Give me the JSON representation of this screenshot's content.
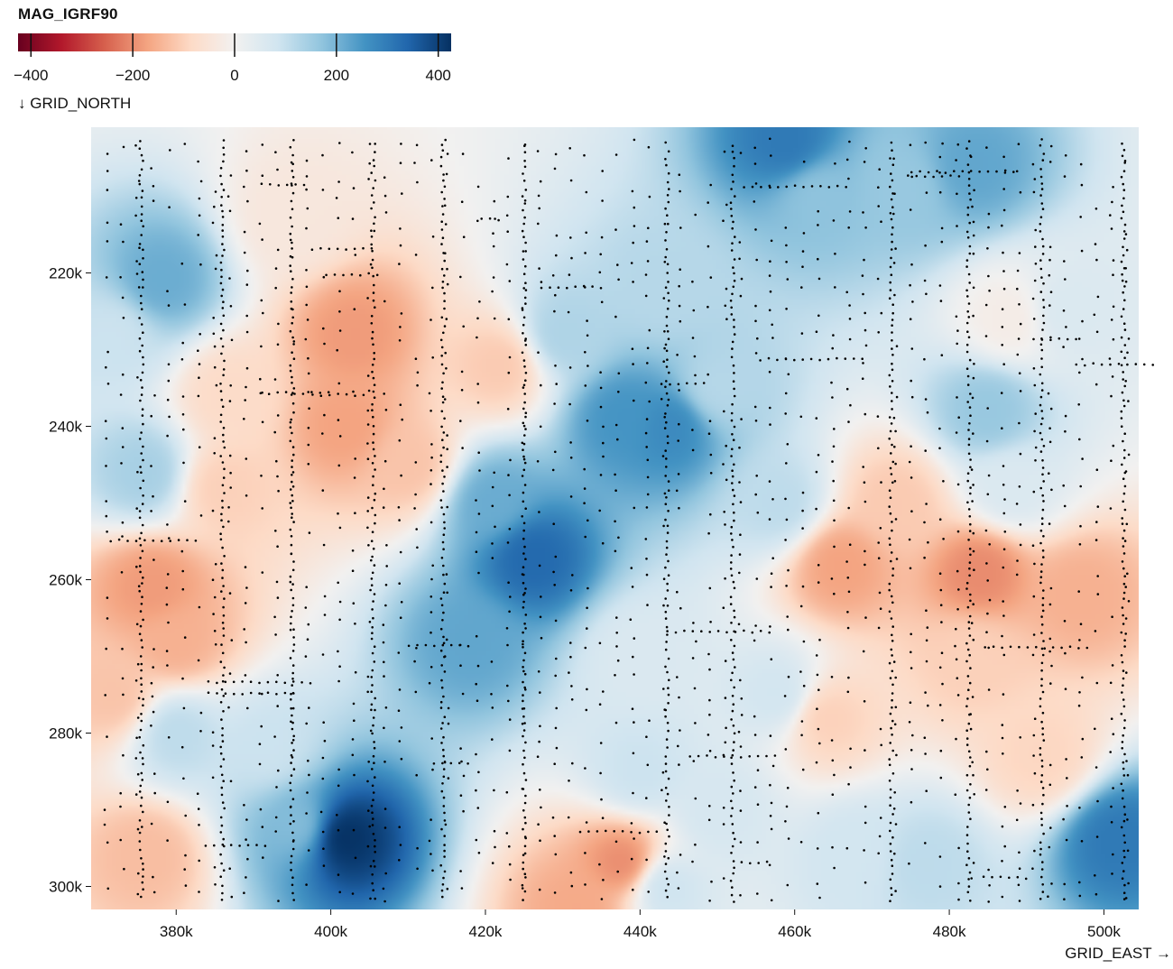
{
  "chart_data": {
    "type": "heatmap",
    "title": "MAG_IGRF90",
    "colorscale": {
      "name": "RdBu",
      "domain": [
        -420,
        420
      ],
      "ticks": [
        -400,
        -200,
        0,
        200,
        400
      ],
      "tick_labels": [
        "−400",
        "−200",
        "0",
        "200",
        "400"
      ]
    },
    "xlabel": "GRID_EAST →",
    "ylabel": "↓ GRID_NORTH",
    "xlim": [
      369000,
      504500
    ],
    "ylim": [
      201000,
      303000
    ],
    "y_reversed": true,
    "x_ticks": [
      380000,
      400000,
      420000,
      440000,
      460000,
      480000,
      500000
    ],
    "x_tick_labels": [
      "380k",
      "400k",
      "420k",
      "440k",
      "460k",
      "480k",
      "500k"
    ],
    "y_ticks": [
      220000,
      240000,
      260000,
      280000,
      300000
    ],
    "y_tick_labels": [
      "220k",
      "240k",
      "260k",
      "280k",
      "300k"
    ],
    "field_anomalies": [
      {
        "x": 401500,
        "y": 293500,
        "v": 420
      },
      {
        "x": 396000,
        "y": 292000,
        "v": 180
      },
      {
        "x": 426000,
        "y": 257000,
        "v": 330
      },
      {
        "x": 418000,
        "y": 268000,
        "v": 220
      },
      {
        "x": 421000,
        "y": 250000,
        "v": 210
      },
      {
        "x": 438000,
        "y": 239000,
        "v": 250
      },
      {
        "x": 444000,
        "y": 240000,
        "v": 270
      },
      {
        "x": 459000,
        "y": 203000,
        "v": 300
      },
      {
        "x": 463000,
        "y": 210000,
        "v": 170
      },
      {
        "x": 483000,
        "y": 206000,
        "v": 220
      },
      {
        "x": 474000,
        "y": 209000,
        "v": 160
      },
      {
        "x": 502000,
        "y": 294000,
        "v": 300
      },
      {
        "x": 378000,
        "y": 221000,
        "v": 210
      },
      {
        "x": 376000,
        "y": 246000,
        "v": 140
      },
      {
        "x": 372000,
        "y": 228000,
        "v": 90
      },
      {
        "x": 380000,
        "y": 280000,
        "v": 110
      },
      {
        "x": 392000,
        "y": 282000,
        "v": 90
      },
      {
        "x": 430000,
        "y": 228000,
        "v": 130
      },
      {
        "x": 443000,
        "y": 222000,
        "v": 120
      },
      {
        "x": 450000,
        "y": 235000,
        "v": 120
      },
      {
        "x": 458000,
        "y": 250000,
        "v": 110
      },
      {
        "x": 458000,
        "y": 275000,
        "v": 80
      },
      {
        "x": 450000,
        "y": 290000,
        "v": 70
      },
      {
        "x": 443000,
        "y": 300000,
        "v": 90
      },
      {
        "x": 477000,
        "y": 297000,
        "v": 110
      },
      {
        "x": 468000,
        "y": 296000,
        "v": 80
      },
      {
        "x": 485000,
        "y": 238000,
        "v": 160
      },
      {
        "x": 488000,
        "y": 248000,
        "v": 60
      },
      {
        "x": 495000,
        "y": 225000,
        "v": 60
      },
      {
        "x": 440000,
        "y": 285000,
        "v": 90
      },
      {
        "x": 440000,
        "y": 270000,
        "v": 60
      },
      {
        "x": 403000,
        "y": 228000,
        "v": -180
      },
      {
        "x": 402000,
        "y": 240000,
        "v": -170
      },
      {
        "x": 410000,
        "y": 245000,
        "v": -120
      },
      {
        "x": 377000,
        "y": 261000,
        "v": -180
      },
      {
        "x": 380000,
        "y": 268000,
        "v": -150
      },
      {
        "x": 372000,
        "y": 275000,
        "v": -120
      },
      {
        "x": 376000,
        "y": 296000,
        "v": -130
      },
      {
        "x": 386000,
        "y": 248000,
        "v": -100
      },
      {
        "x": 387000,
        "y": 236000,
        "v": -80
      },
      {
        "x": 438000,
        "y": 297000,
        "v": -200
      },
      {
        "x": 432000,
        "y": 303000,
        "v": -160
      },
      {
        "x": 484000,
        "y": 259000,
        "v": -200
      },
      {
        "x": 466000,
        "y": 258000,
        "v": -170
      },
      {
        "x": 497000,
        "y": 262000,
        "v": -150
      },
      {
        "x": 473000,
        "y": 250000,
        "v": -110
      },
      {
        "x": 464000,
        "y": 278000,
        "v": -100
      },
      {
        "x": 492000,
        "y": 283000,
        "v": -90
      },
      {
        "x": 483000,
        "y": 270000,
        "v": -100
      },
      {
        "x": 422000,
        "y": 232000,
        "v": -110
      },
      {
        "x": 395000,
        "y": 213000,
        "v": -40
      },
      {
        "x": 488000,
        "y": 226000,
        "v": -20
      }
    ],
    "grid": false,
    "legend_position": "top-left"
  }
}
